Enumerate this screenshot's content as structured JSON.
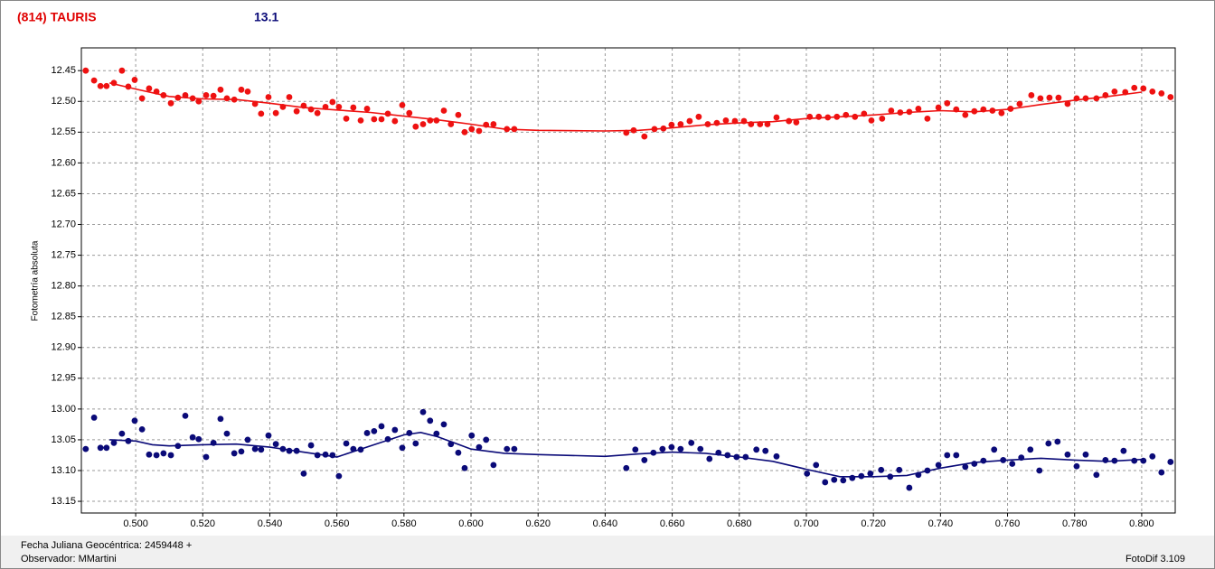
{
  "chart_data": {
    "type": "scatter",
    "title": "(814) TAURIS",
    "subtitle": "13.1",
    "y_label": "Fotometría absoluta",
    "xlim": [
      0.4838,
      0.81
    ],
    "ylim": [
      12.413,
      13.169
    ],
    "y_inverted": true,
    "grid": true,
    "xticks": [
      {
        "value": 0.5,
        "label": "0.500"
      },
      {
        "value": 0.52,
        "label": "0.520"
      },
      {
        "value": 0.54,
        "label": "0.540"
      },
      {
        "value": 0.56,
        "label": "0.560"
      },
      {
        "value": 0.58,
        "label": "0.580"
      },
      {
        "value": 0.6,
        "label": "0.600"
      },
      {
        "value": 0.62,
        "label": "0.620"
      },
      {
        "value": 0.64,
        "label": "0.640"
      },
      {
        "value": 0.66,
        "label": "0.660"
      },
      {
        "value": 0.68,
        "label": "0.680"
      },
      {
        "value": 0.7,
        "label": "0.700"
      },
      {
        "value": 0.72,
        "label": "0.720"
      },
      {
        "value": 0.74,
        "label": "0.740"
      },
      {
        "value": 0.76,
        "label": "0.760"
      },
      {
        "value": 0.78,
        "label": "0.780"
      },
      {
        "value": 0.8,
        "label": "0.800"
      }
    ],
    "yticks": [
      12.45,
      {
        "value": 12.5,
        "label": "12.50"
      },
      12.55,
      {
        "value": 12.6,
        "label": "12.60"
      },
      12.65,
      {
        "value": 12.7,
        "label": "12.70"
      },
      12.75,
      {
        "value": 12.8,
        "label": "12.80"
      },
      12.85,
      {
        "value": 12.9,
        "label": "12.90"
      },
      12.95,
      {
        "value": 13,
        "label": "13.00"
      },
      13.05,
      {
        "value": 13.1,
        "label": "13.10"
      },
      13.15
    ],
    "series": [
      {
        "mode": "markers",
        "color": "#ee1111",
        "x": [
          0.4851,
          0.4876,
          0.4895,
          0.4913,
          0.4935,
          0.4959,
          0.4978,
          0.4997,
          0.5019,
          0.504,
          0.5062,
          0.5083,
          0.5105,
          0.5126,
          0.5148,
          0.517,
          0.5188,
          0.521,
          0.5232,
          0.5253,
          0.5272,
          0.5294,
          0.5315,
          0.5334,
          0.5356,
          0.5374,
          0.5396,
          0.5418,
          0.5439,
          0.5458,
          0.548,
          0.5501,
          0.5523,
          0.5542,
          0.5566,
          0.5587,
          0.5606,
          0.5628,
          0.5649,
          0.5671,
          0.569,
          0.5711,
          0.5733,
          0.5752,
          0.5773,
          0.5795,
          0.5816,
          0.5835,
          0.5857,
          0.5878,
          0.5897,
          0.5919,
          0.594,
          0.5962,
          0.5981,
          0.6002,
          0.6024,
          0.6045,
          0.6067,
          0.6107,
          0.6129,
          0.6463,
          0.6485,
          0.6517,
          0.6547,
          0.6574,
          0.6598,
          0.6625,
          0.6652,
          0.6679,
          0.6706,
          0.6733,
          0.676,
          0.6787,
          0.6814,
          0.6835,
          0.6862,
          0.6884,
          0.6911,
          0.6948,
          0.697,
          0.701,
          0.7037,
          0.7064,
          0.7091,
          0.7118,
          0.7145,
          0.7172,
          0.7194,
          0.7226,
          0.7253,
          0.728,
          0.7307,
          0.7334,
          0.7361,
          0.7394,
          0.742,
          0.7447,
          0.7474,
          0.7501,
          0.7528,
          0.7555,
          0.7582,
          0.7609,
          0.7636,
          0.7671,
          0.7698,
          0.7725,
          0.7752,
          0.7779,
          0.7806,
          0.7833,
          0.7865,
          0.7892,
          0.7919,
          0.7951,
          0.7978,
          0.8005,
          0.8032,
          0.8059,
          0.8086
        ],
        "values": [
          12.45,
          12.466,
          12.475,
          12.475,
          12.47,
          12.45,
          12.476,
          12.465,
          12.495,
          12.479,
          12.484,
          12.49,
          12.503,
          12.494,
          12.49,
          12.495,
          12.5,
          12.49,
          12.491,
          12.481,
          12.495,
          12.497,
          12.481,
          12.484,
          12.504,
          12.52,
          12.493,
          12.519,
          12.509,
          12.493,
          12.516,
          12.507,
          12.513,
          12.519,
          12.509,
          12.501,
          12.509,
          12.528,
          12.51,
          12.531,
          12.512,
          12.529,
          12.529,
          12.52,
          12.532,
          12.506,
          12.519,
          12.541,
          12.537,
          12.531,
          12.531,
          12.515,
          12.537,
          12.522,
          12.55,
          12.545,
          12.548,
          12.538,
          12.537,
          12.545,
          12.545,
          12.551,
          12.547,
          12.557,
          12.545,
          12.544,
          12.538,
          12.537,
          12.532,
          12.525,
          12.537,
          12.535,
          12.531,
          12.532,
          12.532,
          12.537,
          12.537,
          12.537,
          12.526,
          12.532,
          12.534,
          12.525,
          12.525,
          12.526,
          12.525,
          12.522,
          12.525,
          12.52,
          12.531,
          12.528,
          12.515,
          12.518,
          12.517,
          12.512,
          12.528,
          12.51,
          12.503,
          12.513,
          12.522,
          12.516,
          12.513,
          12.515,
          12.519,
          12.512,
          12.504,
          12.49,
          12.495,
          12.494,
          12.494,
          12.504,
          12.495,
          12.495,
          12.495,
          12.49,
          12.484,
          12.485,
          12.478,
          12.479,
          12.484,
          12.487,
          12.493
        ]
      },
      {
        "mode": "line",
        "color": "#ee1111",
        "x": [
          0.4922,
          0.5,
          0.51,
          0.52,
          0.53,
          0.54,
          0.55,
          0.56,
          0.57,
          0.58,
          0.59,
          0.6,
          0.61,
          0.62,
          0.64,
          0.65,
          0.66,
          0.67,
          0.68,
          0.69,
          0.7,
          0.71,
          0.72,
          0.73,
          0.74,
          0.75,
          0.76,
          0.77,
          0.78,
          0.79,
          0.8
        ],
        "values": [
          12.47,
          12.48,
          12.492,
          12.496,
          12.497,
          12.503,
          12.51,
          12.514,
          12.518,
          12.524,
          12.53,
          12.537,
          12.545,
          12.547,
          12.548,
          12.547,
          12.543,
          12.538,
          12.535,
          12.533,
          12.528,
          12.525,
          12.522,
          12.518,
          12.515,
          12.517,
          12.513,
          12.505,
          12.498,
          12.492,
          12.485
        ]
      },
      {
        "mode": "markers",
        "color": "#0a0a78",
        "x": [
          0.4851,
          0.4876,
          0.4895,
          0.4913,
          0.4935,
          0.4959,
          0.4978,
          0.4997,
          0.5019,
          0.504,
          0.5062,
          0.5083,
          0.5105,
          0.5126,
          0.5148,
          0.517,
          0.5188,
          0.521,
          0.5232,
          0.5253,
          0.5272,
          0.5294,
          0.5315,
          0.5334,
          0.5356,
          0.5374,
          0.5396,
          0.5418,
          0.5439,
          0.5458,
          0.548,
          0.5501,
          0.5523,
          0.5542,
          0.5566,
          0.5587,
          0.5606,
          0.5628,
          0.5649,
          0.5671,
          0.569,
          0.5711,
          0.5733,
          0.5752,
          0.5773,
          0.5795,
          0.5816,
          0.5835,
          0.5857,
          0.5878,
          0.5897,
          0.5919,
          0.594,
          0.5962,
          0.5981,
          0.6002,
          0.6024,
          0.6045,
          0.6067,
          0.6107,
          0.6129,
          0.6463,
          0.649,
          0.6517,
          0.6544,
          0.6571,
          0.6598,
          0.6625,
          0.6657,
          0.6684,
          0.6711,
          0.6738,
          0.6765,
          0.6792,
          0.6819,
          0.6851,
          0.6878,
          0.6911,
          0.7002,
          0.7029,
          0.7056,
          0.7083,
          0.711,
          0.7137,
          0.7164,
          0.7191,
          0.7223,
          0.725,
          0.7277,
          0.7307,
          0.7334,
          0.7361,
          0.7394,
          0.742,
          0.7447,
          0.7474,
          0.7501,
          0.7528,
          0.756,
          0.7587,
          0.7614,
          0.7641,
          0.7668,
          0.7695,
          0.7722,
          0.7749,
          0.7779,
          0.7806,
          0.7833,
          0.7865,
          0.7892,
          0.7919,
          0.7946,
          0.7978,
          0.8005,
          0.8032,
          0.8059,
          0.8086
        ],
        "values": [
          13.065,
          13.014,
          13.063,
          13.063,
          13.055,
          13.04,
          13.052,
          13.019,
          13.033,
          13.074,
          13.075,
          13.072,
          13.075,
          13.06,
          13.011,
          13.046,
          13.049,
          13.078,
          13.055,
          13.016,
          13.04,
          13.072,
          13.069,
          13.05,
          13.065,
          13.066,
          13.043,
          13.057,
          13.065,
          13.068,
          13.068,
          13.105,
          13.059,
          13.075,
          13.074,
          13.075,
          13.109,
          13.056,
          13.065,
          13.066,
          13.039,
          13.036,
          13.028,
          13.049,
          13.034,
          13.063,
          13.039,
          13.056,
          13.005,
          13.019,
          13.04,
          13.025,
          13.057,
          13.071,
          13.096,
          13.043,
          13.062,
          13.05,
          13.091,
          13.065,
          13.065,
          13.096,
          13.066,
          13.083,
          13.071,
          13.065,
          13.062,
          13.065,
          13.055,
          13.065,
          13.081,
          13.071,
          13.075,
          13.078,
          13.078,
          13.066,
          13.068,
          13.077,
          13.105,
          13.091,
          13.119,
          13.115,
          13.116,
          13.112,
          13.109,
          13.105,
          13.099,
          13.11,
          13.099,
          13.128,
          13.107,
          13.1,
          13.091,
          13.075,
          13.075,
          13.094,
          13.089,
          13.084,
          13.066,
          13.083,
          13.089,
          13.079,
          13.066,
          13.1,
          13.056,
          13.053,
          13.074,
          13.093,
          13.074,
          13.107,
          13.083,
          13.084,
          13.068,
          13.084,
          13.084,
          13.077,
          13.103,
          13.086
        ]
      },
      {
        "mode": "line",
        "color": "#0a0a78",
        "x": [
          0.4922,
          0.5,
          0.505,
          0.51,
          0.52,
          0.53,
          0.54,
          0.55,
          0.56,
          0.57,
          0.58,
          0.585,
          0.59,
          0.6,
          0.61,
          0.62,
          0.64,
          0.65,
          0.66,
          0.67,
          0.68,
          0.69,
          0.7,
          0.71,
          0.72,
          0.73,
          0.74,
          0.75,
          0.76,
          0.77,
          0.78,
          0.79,
          0.8
        ],
        "values": [
          13.05,
          13.052,
          13.058,
          13.06,
          13.058,
          13.057,
          13.062,
          13.07,
          13.078,
          13.06,
          13.042,
          13.038,
          13.045,
          13.065,
          13.072,
          13.074,
          13.077,
          13.073,
          13.07,
          13.072,
          13.078,
          13.085,
          13.098,
          13.11,
          13.11,
          13.108,
          13.096,
          13.087,
          13.083,
          13.08,
          13.083,
          13.085,
          13.082
        ]
      }
    ]
  },
  "footer": {
    "date": "Fecha Juliana Geocéntrica: 2459448 +",
    "observer": "Observador: MMartini",
    "software": "FotoDif 3.109"
  }
}
